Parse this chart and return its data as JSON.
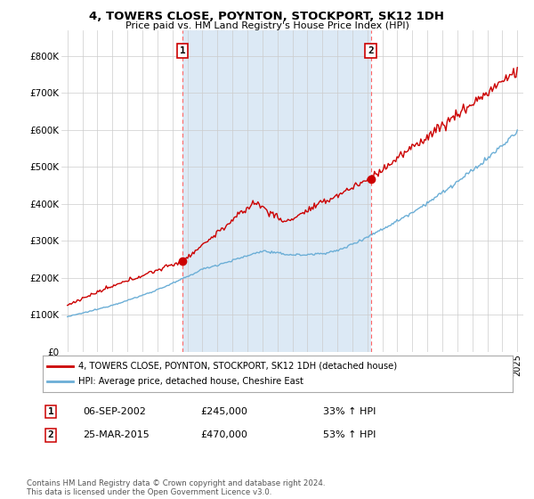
{
  "title": "4, TOWERS CLOSE, POYNTON, STOCKPORT, SK12 1DH",
  "subtitle": "Price paid vs. HM Land Registry's House Price Index (HPI)",
  "yticks": [
    0,
    100000,
    200000,
    300000,
    400000,
    500000,
    600000,
    700000,
    800000
  ],
  "ytick_labels": [
    "£0",
    "£100K",
    "£200K",
    "£300K",
    "£400K",
    "£500K",
    "£600K",
    "£700K",
    "£800K"
  ],
  "xlim_start": 1994.6,
  "xlim_end": 2025.4,
  "ylim_min": 0,
  "ylim_max": 870000,
  "transaction1_date": 2002.69,
  "transaction1_price": 245000,
  "transaction1_label": "1",
  "transaction2_date": 2015.23,
  "transaction2_price": 470000,
  "transaction2_label": "2",
  "hpi_line_color": "#6baed6",
  "price_line_color": "#cc0000",
  "vline_color": "#ff6666",
  "shade_color": "#dce9f5",
  "legend_line1": "4, TOWERS CLOSE, POYNTON, STOCKPORT, SK12 1DH (detached house)",
  "legend_line2": "HPI: Average price, detached house, Cheshire East",
  "annotation1_date": "06-SEP-2002",
  "annotation1_price": "£245,000",
  "annotation1_pct": "33% ↑ HPI",
  "annotation2_date": "25-MAR-2015",
  "annotation2_price": "£470,000",
  "annotation2_pct": "53% ↑ HPI",
  "footer": "Contains HM Land Registry data © Crown copyright and database right 2024.\nThis data is licensed under the Open Government Licence v3.0.",
  "background_color": "#ffffff",
  "plot_bg_color": "#ffffff",
  "grid_color": "#cccccc"
}
